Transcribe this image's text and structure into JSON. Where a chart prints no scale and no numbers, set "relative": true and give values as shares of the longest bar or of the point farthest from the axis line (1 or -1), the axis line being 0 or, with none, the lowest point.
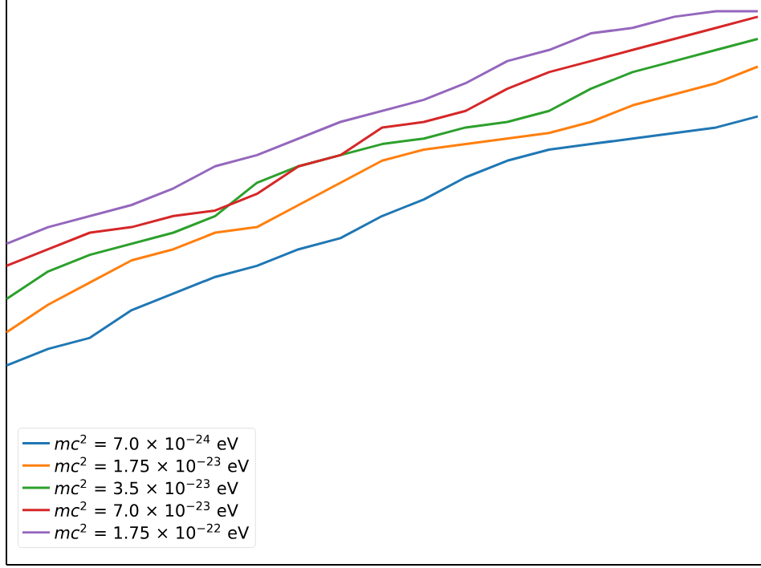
{
  "chart_data": {
    "type": "line",
    "relative": true,
    "legend": "bottom left",
    "categories": [
      null,
      null,
      null,
      null,
      null,
      null,
      null,
      null,
      null,
      null,
      null,
      null,
      null,
      null,
      null,
      null,
      null,
      null,
      null
    ],
    "series": [
      {
        "name": "*mc*$^{2}$ = 7.0 × 10$^{−24}$ eV",
        "color": "#1f77b4",
        "values": [
          0.36,
          0.39,
          0.41,
          0.46,
          0.49,
          0.52,
          0.54,
          0.57,
          0.59,
          0.63,
          0.66,
          0.7,
          0.73,
          0.75,
          0.76,
          0.77,
          0.78,
          0.79,
          0.81
        ]
      },
      {
        "name": "*mc*$^{2}$ = 1.75 × 10$^{−23}$ eV",
        "color": "#ff7f0e",
        "values": [
          0.42,
          0.47,
          0.51,
          0.55,
          0.57,
          0.6,
          0.61,
          0.65,
          0.69,
          0.73,
          0.75,
          0.76,
          0.77,
          0.78,
          0.8,
          0.83,
          0.85,
          0.87,
          0.9
        ]
      },
      {
        "name": "*mc*$^{2}$ = 3.5 × 10$^{−23}$ eV",
        "color": "#2ca02c",
        "values": [
          0.48,
          0.53,
          0.56,
          0.58,
          0.6,
          0.63,
          0.69,
          0.72,
          0.74,
          0.76,
          0.77,
          0.79,
          0.8,
          0.82,
          0.86,
          0.89,
          0.91,
          0.93,
          0.95
        ]
      },
      {
        "name": "*mc*$^{2}$ = 7.0 × 10$^{−23}$ eV",
        "color": "#d62728",
        "values": [
          0.54,
          0.57,
          0.6,
          0.61,
          0.63,
          0.64,
          0.67,
          0.72,
          0.74,
          0.79,
          0.8,
          0.82,
          0.86,
          0.89,
          0.91,
          0.93,
          0.95,
          0.97,
          0.99
        ]
      },
      {
        "name": "*mc*$^{2}$ = 1.75 × 10$^{−22}$ eV",
        "color": "#9467bd",
        "values": [
          0.58,
          0.61,
          0.63,
          0.65,
          0.68,
          0.72,
          0.74,
          0.77,
          0.8,
          0.82,
          0.84,
          0.87,
          0.91,
          0.93,
          0.96,
          0.97,
          0.99,
          1.0,
          1.0
        ]
      }
    ]
  }
}
